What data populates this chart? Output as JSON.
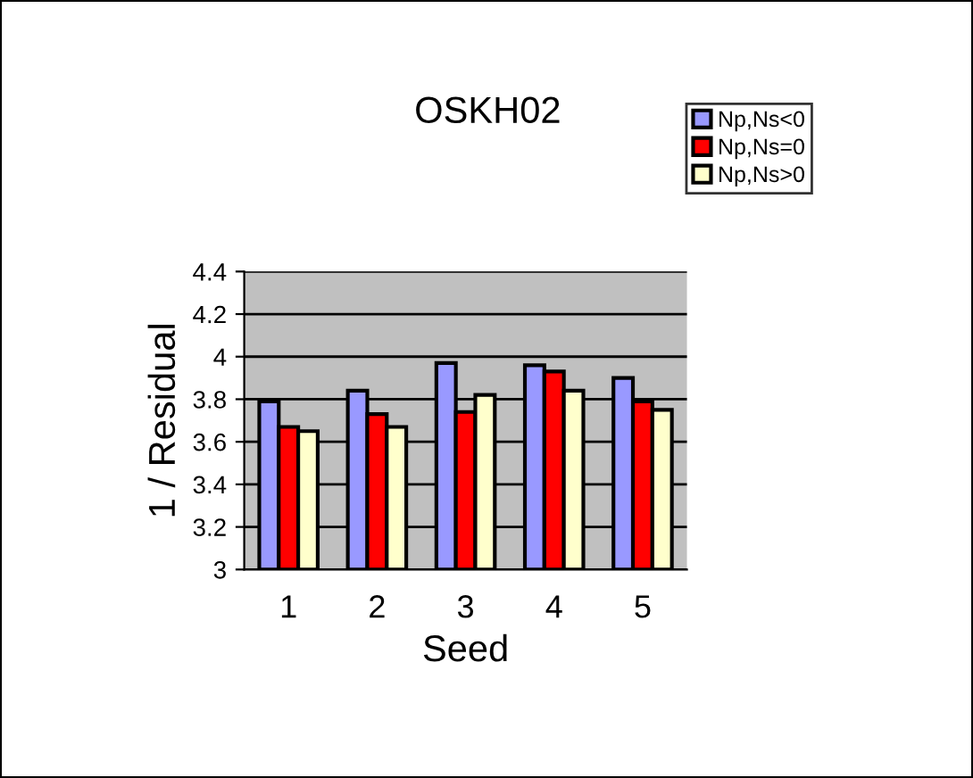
{
  "chart_data": {
    "type": "bar",
    "title": "OSKH02",
    "xlabel": "Seed",
    "ylabel": "1 / Residual",
    "categories": [
      "1",
      "2",
      "3",
      "4",
      "5"
    ],
    "series": [
      {
        "name": "Np,Ns<0",
        "color": "#9999ff",
        "values": [
          3.79,
          3.84,
          3.97,
          3.96,
          3.9
        ]
      },
      {
        "name": "Np,Ns=0",
        "color": "#ff0000",
        "values": [
          3.67,
          3.73,
          3.74,
          3.93,
          3.79
        ]
      },
      {
        "name": "Np,Ns>0",
        "color": "#ffffcc",
        "values": [
          3.65,
          3.67,
          3.82,
          3.84,
          3.75
        ]
      }
    ],
    "ylim": [
      3,
      4.4
    ],
    "yticks": [
      3,
      3.2,
      3.4,
      3.6,
      3.8,
      4,
      4.2,
      4.4
    ],
    "grid": "y",
    "legend": "top right"
  }
}
